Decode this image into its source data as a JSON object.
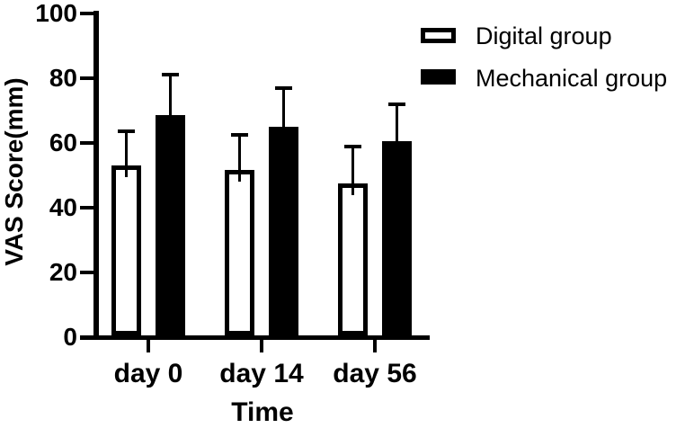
{
  "chart_data": {
    "type": "bar",
    "title": "",
    "xlabel": "Time",
    "ylabel": "VAS Score(mm)",
    "categories": [
      "day 0",
      "day 14",
      "day 56"
    ],
    "series": [
      {
        "name": "Digital group",
        "fill": "#ffffff",
        "border": "#000000",
        "values": [
          52.5,
          51,
          47
        ],
        "errors_upper": [
          11,
          11.5,
          12
        ]
      },
      {
        "name": "Mechanical group",
        "fill": "#000000",
        "border": "#000000",
        "values": [
          68,
          64.5,
          60
        ],
        "errors_upper": [
          13,
          12.5,
          12
        ]
      }
    ],
    "ylim": [
      0,
      100
    ],
    "yticks": [
      0,
      20,
      40,
      60,
      80,
      100
    ],
    "grid": false,
    "legend_position": "top-right",
    "error_bars": "upper-only",
    "colors": {
      "axis": "#000000",
      "text": "#000000",
      "background": "#ffffff"
    }
  }
}
